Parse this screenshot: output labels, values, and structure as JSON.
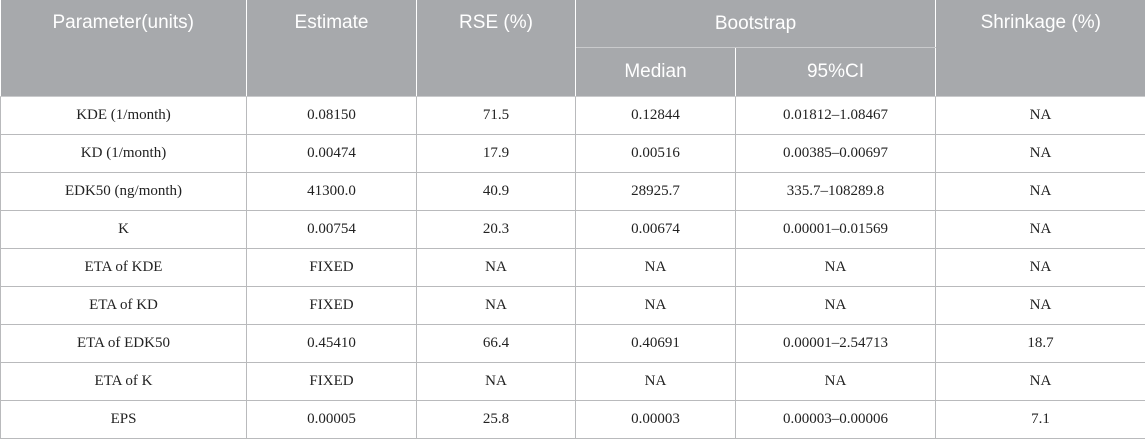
{
  "header": {
    "parameter": "Parameter(units)",
    "estimate": "Estimate",
    "rse": "RSE (%)",
    "bootstrap": "Bootstrap",
    "median": "Median",
    "ci": "95%CI",
    "shrinkage": "Shrinkage (%)"
  },
  "rows": [
    [
      "KDE (1/month)",
      "0.08150",
      "71.5",
      "0.12844",
      "0.01812–1.08467",
      "NA"
    ],
    [
      "KD (1/month)",
      "0.00474",
      "17.9",
      "0.00516",
      "0.00385–0.00697",
      "NA"
    ],
    [
      "EDK50 (ng/month)",
      "41300.0",
      "40.9",
      "28925.7",
      "335.7–108289.8",
      "NA"
    ],
    [
      "K",
      "0.00754",
      "20.3",
      "0.00674",
      "0.00001–0.01569",
      "NA"
    ],
    [
      "ETA of KDE",
      "FIXED",
      "NA",
      "NA",
      "NA",
      "NA"
    ],
    [
      "ETA of KD",
      "FIXED",
      "NA",
      "NA",
      "NA",
      "NA"
    ],
    [
      "ETA of EDK50",
      "0.45410",
      "66.4",
      "0.40691",
      "0.00001–2.54713",
      "18.7"
    ],
    [
      "ETA of K",
      "FIXED",
      "NA",
      "NA",
      "NA",
      "NA"
    ],
    [
      "EPS",
      "0.00005",
      "25.8",
      "0.00003",
      "0.00003–0.00006",
      "7.1"
    ]
  ]
}
